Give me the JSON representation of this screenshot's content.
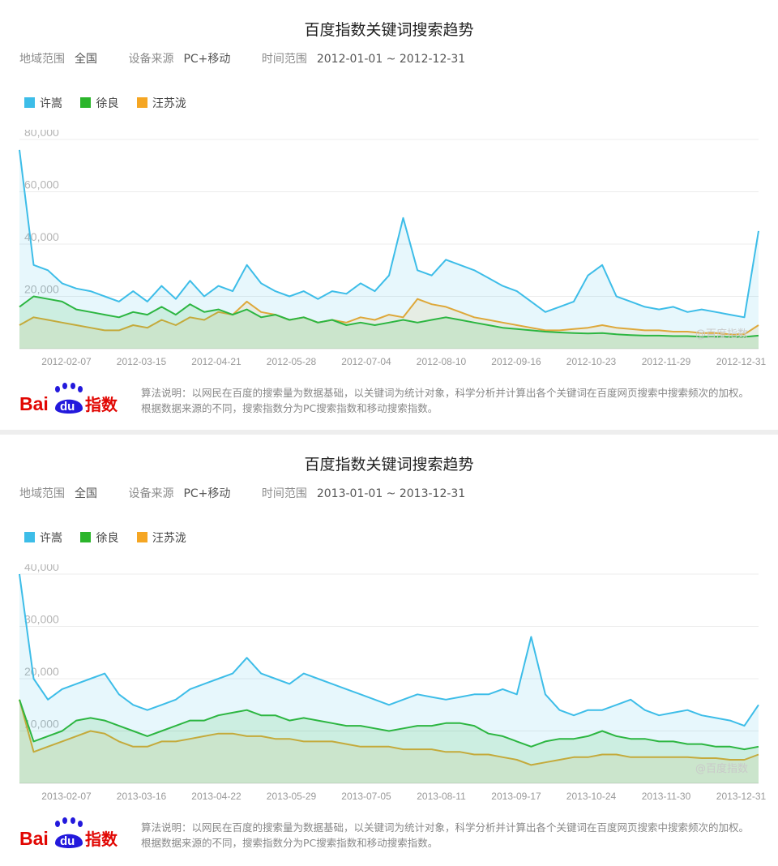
{
  "panels": [
    {
      "title": "百度指数关键词搜索趋势",
      "region_label": "地域范围",
      "region_value": "全国",
      "device_label": "设备来源",
      "device_value": "PC+移动",
      "time_label": "时间范围",
      "time_value": "2012-01-01 ~ 2012-12-31",
      "watermark": "@百度指数",
      "footer_text": "算法说明：以网民在百度的搜索量为数据基础，以关键词为统计对象，科学分析并计算出各个关键词在百度网页搜索中搜索频次的加权。根据数据来源的不同，搜索指数分为PC搜索指数和移动搜索指数。"
    },
    {
      "title": "百度指数关键词搜索趋势",
      "region_label": "地域范围",
      "region_value": "全国",
      "device_label": "设备来源",
      "device_value": "PC+移动",
      "time_label": "时间范围",
      "time_value": "2013-01-01 ~ 2013-12-31",
      "watermark": "@百度指数",
      "footer_text": "算法说明：以网民在百度的搜索量为数据基础，以关键词为统计对象，科学分析并计算出各个关键词在百度网页搜索中搜索频次的加权。根据数据来源的不同，搜索指数分为PC搜索指数和移动搜索指数。"
    }
  ],
  "logo": {
    "text_bai": "Bai",
    "text_du": "du",
    "text_zhishu": "指数"
  },
  "colors": {
    "xu_song": "#3dbde8",
    "xu_liang": "#2bb52b",
    "wang_sulong": "#f5a623",
    "grid": "#ececec",
    "axis_text": "#b5b5b5"
  },
  "chart_data": [
    {
      "type": "line",
      "title": "百度指数关键词搜索趋势",
      "ylim": [
        0,
        80000
      ],
      "yticks": [
        20000,
        40000,
        60000,
        80000
      ],
      "ytick_labels": [
        "20,000",
        "40,000",
        "60,000",
        "80,000"
      ],
      "xtick_labels": [
        "2012-02-07",
        "2012-03-15",
        "2012-04-21",
        "2012-05-28",
        "2012-07-04",
        "2012-08-10",
        "2012-09-16",
        "2012-10-23",
        "2012-11-29",
        "2012-12-31"
      ],
      "x": [
        "2012-01-01",
        "2012-01-08",
        "2012-01-15",
        "2012-01-22",
        "2012-01-29",
        "2012-02-05",
        "2012-02-12",
        "2012-02-19",
        "2012-02-26",
        "2012-03-04",
        "2012-03-11",
        "2012-03-18",
        "2012-03-25",
        "2012-04-01",
        "2012-04-08",
        "2012-04-15",
        "2012-04-22",
        "2012-04-29",
        "2012-05-06",
        "2012-05-13",
        "2012-05-20",
        "2012-05-27",
        "2012-06-03",
        "2012-06-10",
        "2012-06-17",
        "2012-06-24",
        "2012-07-01",
        "2012-07-08",
        "2012-07-15",
        "2012-07-22",
        "2012-07-29",
        "2012-08-05",
        "2012-08-12",
        "2012-08-19",
        "2012-08-26",
        "2012-09-02",
        "2012-09-09",
        "2012-09-16",
        "2012-09-23",
        "2012-09-30",
        "2012-10-07",
        "2012-10-14",
        "2012-10-21",
        "2012-10-28",
        "2012-11-04",
        "2012-11-11",
        "2012-11-18",
        "2012-11-25",
        "2012-12-02",
        "2012-12-09",
        "2012-12-16",
        "2012-12-23",
        "2012-12-31"
      ],
      "series": [
        {
          "name": "许嵩",
          "values": [
            76000,
            32000,
            30000,
            25000,
            23000,
            22000,
            20000,
            18000,
            22000,
            18000,
            24000,
            19000,
            26000,
            20000,
            24000,
            22000,
            32000,
            25000,
            22000,
            20000,
            22000,
            19000,
            22000,
            21000,
            25000,
            22000,
            28000,
            50000,
            30000,
            28000,
            34000,
            32000,
            30000,
            27000,
            24000,
            22000,
            18000,
            14000,
            16000,
            18000,
            28000,
            32000,
            20000,
            18000,
            16000,
            15000,
            16000,
            14000,
            15000,
            14000,
            13000,
            12000,
            45000
          ]
        },
        {
          "name": "徐良",
          "values": [
            16000,
            20000,
            19000,
            18000,
            15000,
            14000,
            13000,
            12000,
            14000,
            13000,
            16000,
            13000,
            17000,
            14000,
            15000,
            13000,
            15000,
            12000,
            13000,
            11000,
            12000,
            10000,
            11000,
            9000,
            10000,
            9000,
            10000,
            11000,
            10000,
            11000,
            12000,
            11000,
            10000,
            9000,
            8000,
            7500,
            7000,
            6500,
            6200,
            6000,
            5800,
            6000,
            5500,
            5200,
            5000,
            5000,
            4800,
            4800,
            4600,
            4600,
            4500,
            4500,
            5000
          ]
        },
        {
          "name": "汪苏泷",
          "values": [
            9000,
            12000,
            11000,
            10000,
            9000,
            8000,
            7000,
            7000,
            9000,
            8000,
            11000,
            9000,
            12000,
            11000,
            14000,
            13000,
            18000,
            14000,
            13000,
            11000,
            12000,
            10000,
            11000,
            10000,
            12000,
            11000,
            13000,
            12000,
            19000,
            17000,
            16000,
            14000,
            12000,
            11000,
            10000,
            9000,
            8000,
            7000,
            7000,
            7500,
            8000,
            9000,
            8000,
            7500,
            7000,
            7000,
            6500,
            6500,
            6000,
            6000,
            5500,
            5500,
            9000
          ]
        }
      ]
    },
    {
      "type": "line",
      "title": "百度指数关键词搜索趋势",
      "ylim": [
        0,
        40000
      ],
      "yticks": [
        10000,
        20000,
        30000,
        40000
      ],
      "ytick_labels": [
        "10,000",
        "20,000",
        "30,000",
        "40,000"
      ],
      "xtick_labels": [
        "2013-02-07",
        "2013-03-16",
        "2013-04-22",
        "2013-05-29",
        "2013-07-05",
        "2013-08-11",
        "2013-09-17",
        "2013-10-24",
        "2013-11-30",
        "2013-12-31"
      ],
      "x": [
        "2013-01-01",
        "2013-01-08",
        "2013-01-15",
        "2013-01-22",
        "2013-01-29",
        "2013-02-05",
        "2013-02-12",
        "2013-02-19",
        "2013-02-26",
        "2013-03-05",
        "2013-03-12",
        "2013-03-19",
        "2013-03-26",
        "2013-04-02",
        "2013-04-09",
        "2013-04-16",
        "2013-04-23",
        "2013-04-30",
        "2013-05-07",
        "2013-05-14",
        "2013-05-21",
        "2013-05-28",
        "2013-06-04",
        "2013-06-11",
        "2013-06-18",
        "2013-06-25",
        "2013-07-02",
        "2013-07-09",
        "2013-07-16",
        "2013-07-23",
        "2013-07-30",
        "2013-08-06",
        "2013-08-13",
        "2013-08-20",
        "2013-08-27",
        "2013-09-03",
        "2013-09-10",
        "2013-09-17",
        "2013-09-24",
        "2013-10-01",
        "2013-10-08",
        "2013-10-15",
        "2013-10-22",
        "2013-10-29",
        "2013-11-05",
        "2013-11-12",
        "2013-11-19",
        "2013-11-26",
        "2013-12-03",
        "2013-12-10",
        "2013-12-17",
        "2013-12-24",
        "2013-12-31"
      ],
      "series": [
        {
          "name": "许嵩",
          "values": [
            40000,
            20000,
            16000,
            18000,
            19000,
            20000,
            21000,
            17000,
            15000,
            14000,
            15000,
            16000,
            18000,
            19000,
            20000,
            21000,
            24000,
            21000,
            20000,
            19000,
            21000,
            20000,
            19000,
            18000,
            17000,
            16000,
            15000,
            16000,
            17000,
            16500,
            16000,
            16500,
            17000,
            17000,
            18000,
            17000,
            28000,
            17000,
            14000,
            13000,
            14000,
            14000,
            15000,
            16000,
            14000,
            13000,
            13500,
            14000,
            13000,
            12500,
            12000,
            11000,
            15000
          ]
        },
        {
          "name": "徐良",
          "values": [
            16000,
            8000,
            9000,
            10000,
            12000,
            12500,
            12000,
            11000,
            10000,
            9000,
            10000,
            11000,
            12000,
            12000,
            13000,
            13500,
            14000,
            13000,
            13000,
            12000,
            12500,
            12000,
            11500,
            11000,
            11000,
            10500,
            10000,
            10500,
            11000,
            11000,
            11500,
            11500,
            11000,
            9500,
            9000,
            8000,
            7000,
            8000,
            8500,
            8500,
            9000,
            10000,
            9000,
            8500,
            8500,
            8000,
            8000,
            7500,
            7500,
            7000,
            7000,
            6500,
            7000
          ]
        },
        {
          "name": "汪苏泷",
          "values": [
            16000,
            6000,
            7000,
            8000,
            9000,
            10000,
            9500,
            8000,
            7000,
            7000,
            8000,
            8000,
            8500,
            9000,
            9500,
            9500,
            9000,
            9000,
            8500,
            8500,
            8000,
            8000,
            8000,
            7500,
            7000,
            7000,
            7000,
            6500,
            6500,
            6500,
            6000,
            6000,
            5500,
            5500,
            5000,
            4500,
            3500,
            4000,
            4500,
            5000,
            5000,
            5500,
            5500,
            5000,
            5000,
            5000,
            5000,
            5000,
            4800,
            4800,
            4500,
            4500,
            5500
          ]
        }
      ]
    }
  ]
}
